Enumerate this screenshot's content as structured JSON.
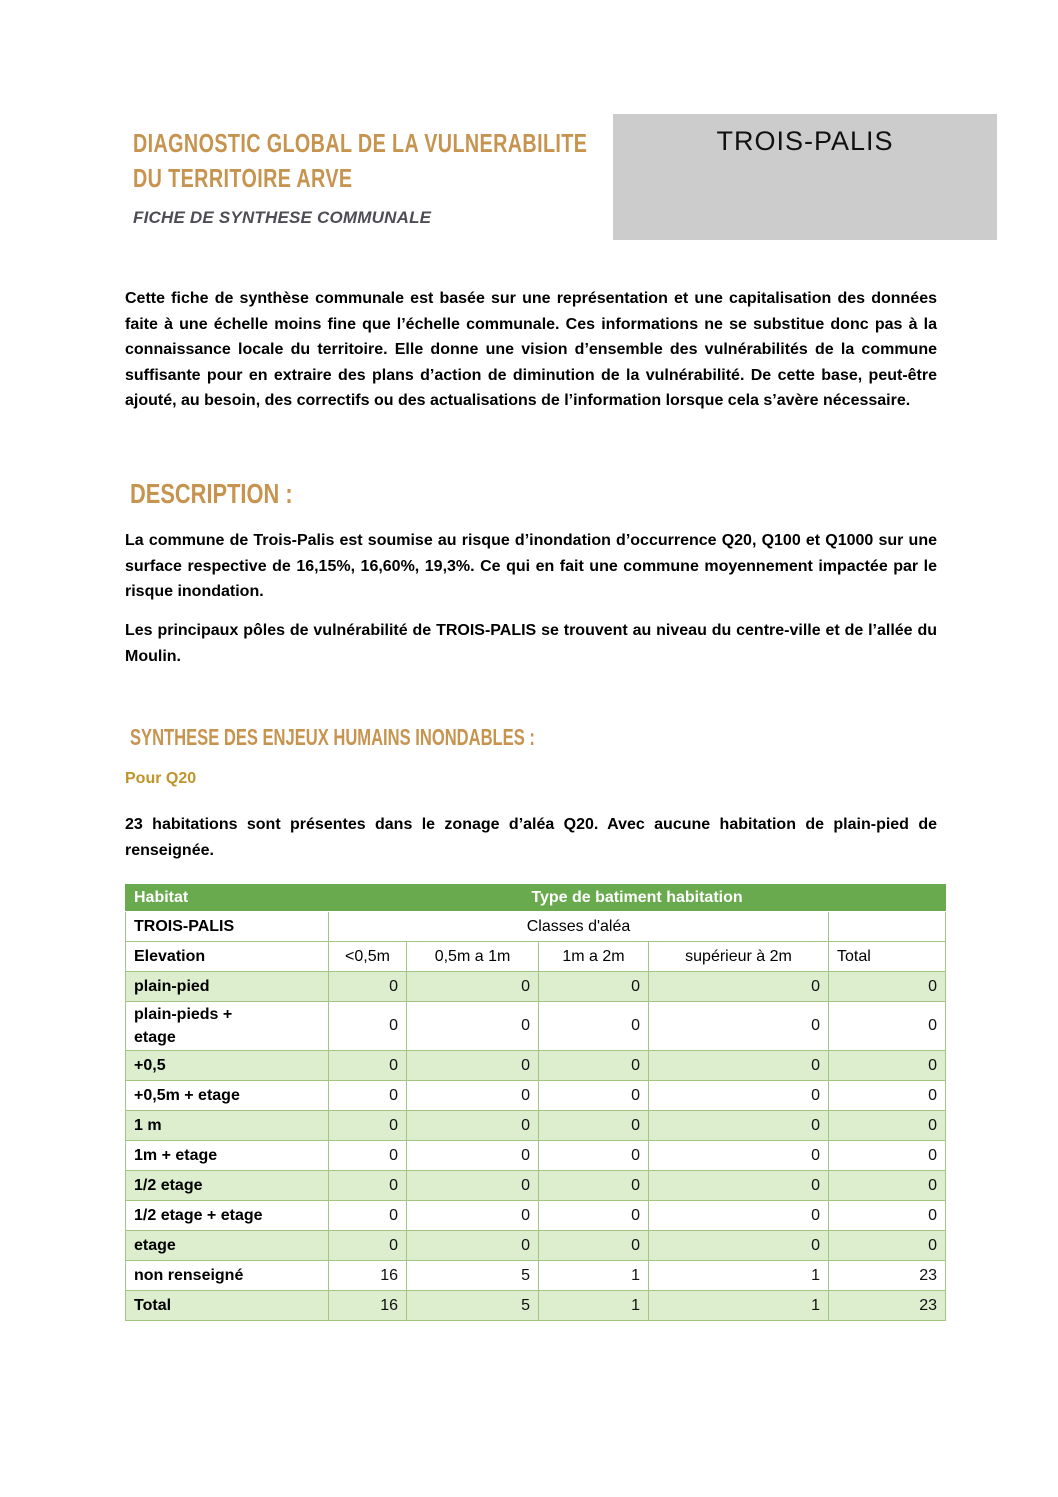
{
  "header": {
    "title_line1": "DIAGNOSTIC GLOBAL DE LA VULNERABILITE",
    "title_line2": "DU TERRITOIRE ARVE",
    "subtitle": "FICHE DE SYNTHESE COMMUNALE",
    "commune": "TROIS-PALIS"
  },
  "intro": "Cette fiche de synthèse communale est basée sur une représentation et une capitalisation des données faite à une échelle moins fine que l’échelle communale. Ces informations ne se substitue donc pas à la connaissance locale du territoire. Elle donne une vision d’ensemble des vulnérabilités de la commune suffisante pour en extraire des plans d’action de diminution de la vulnérabilité. De cette base, peut-être ajouté, au besoin, des correctifs ou des actualisations de l’information lorsque cela s’avère nécessaire.",
  "description": {
    "heading": "DESCRIPTION :",
    "para1": "La commune de Trois-Palis est soumise au risque d’inondation d’occurrence Q20, Q100 et Q1000 sur une surface respective de 16,15%, 16,60%, 19,3%. Ce qui en fait une commune moyennement impactée par le risque inondation.",
    "para2": "Les principaux pôles de vulnérabilité de TROIS-PALIS se trouvent au niveau du centre-ville et de l’allée du Moulin."
  },
  "synthese": {
    "heading": "SYNTHESE DES ENJEUX HUMAINS INONDABLES :",
    "subheading": "Pour Q20",
    "para": "23 habitations sont présentes dans le zonage d’aléa Q20. Avec aucune habitation de plain-pied de renseignée."
  },
  "table": {
    "corner_header": "Habitat",
    "span_header": "Type de batiment habitation",
    "commune": "TROIS-PALIS",
    "classes_header": "Classes d'aléa",
    "elevation_label": "Elevation",
    "columns": [
      "<0,5m",
      "0,5m a 1m",
      "1m a 2m",
      "supérieur à 2m",
      "Total"
    ],
    "rows": [
      {
        "label": "plain-pied",
        "values": [
          "0",
          "0",
          "0",
          "0",
          "0"
        ]
      },
      {
        "label": "plain-pieds +\netage",
        "values": [
          "0",
          "0",
          "0",
          "0",
          "0"
        ]
      },
      {
        "label": "+0,5",
        "values": [
          "0",
          "0",
          "0",
          "0",
          "0"
        ]
      },
      {
        "label": "+0,5m + etage",
        "values": [
          "0",
          "0",
          "0",
          "0",
          "0"
        ]
      },
      {
        "label": "1 m",
        "values": [
          "0",
          "0",
          "0",
          "0",
          "0"
        ]
      },
      {
        "label": "1m + etage",
        "values": [
          "0",
          "0",
          "0",
          "0",
          "0"
        ]
      },
      {
        "label": "1/2 etage",
        "values": [
          "0",
          "0",
          "0",
          "0",
          "0"
        ]
      },
      {
        "label": "1/2 etage + etage",
        "values": [
          "0",
          "0",
          "0",
          "0",
          "0"
        ]
      },
      {
        "label": "etage",
        "values": [
          "0",
          "0",
          "0",
          "0",
          "0"
        ]
      },
      {
        "label": "non renseigné",
        "values": [
          "16",
          "5",
          "1",
          "1",
          "23"
        ]
      },
      {
        "label": "Total",
        "values": [
          "16",
          "5",
          "1",
          "1",
          "23"
        ]
      }
    ]
  },
  "colors": {
    "accent_orange": "#c79450",
    "gold": "#bf9428",
    "subtitle_gray": "#4d4d55",
    "table_header_green": "#6aaa4e",
    "row_green": "#ddeecf",
    "border_green": "#a3c584",
    "commune_box_gray": "#cdcccc"
  }
}
